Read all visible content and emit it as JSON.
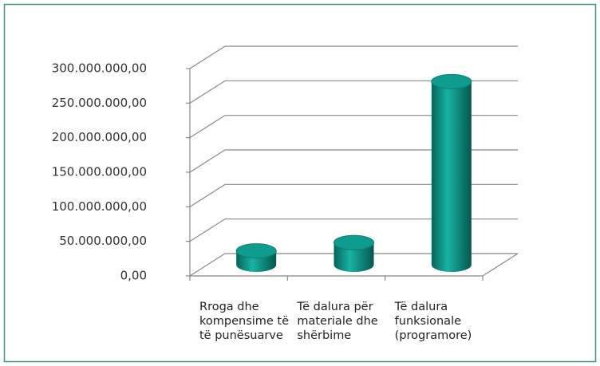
{
  "chart_data": {
    "type": "bar3d",
    "categories": [
      "Rroga dhe kompensime të të punësuarve",
      "Të dalura për materiale dhe shërbime",
      "Të dalura funksionale (programore)"
    ],
    "values": [
      20000000,
      32000000,
      265000000
    ],
    "color": "#0e9c8e",
    "ylim": [
      0,
      300000000
    ],
    "yticks": [
      {
        "value": 0,
        "label": "0,00"
      },
      {
        "value": 50000000,
        "label": "50.000.000,00"
      },
      {
        "value": 100000000,
        "label": "100.000.000,00"
      },
      {
        "value": 150000000,
        "label": "150.000.000,00"
      },
      {
        "value": 200000000,
        "label": "200.000.000,00"
      },
      {
        "value": 250000000,
        "label": "250.000.000,00"
      },
      {
        "value": 300000000,
        "label": "300.000.000,00"
      }
    ],
    "grid": true
  }
}
